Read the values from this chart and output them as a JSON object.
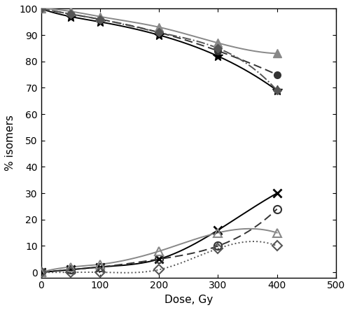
{
  "doses": [
    0,
    50,
    100,
    200,
    300,
    400
  ],
  "cis_AscH": [
    100,
    97,
    95,
    90,
    82,
    69
  ],
  "cis_ResOH": [
    100,
    98,
    96,
    91,
    84,
    75
  ],
  "cis_aTOH": [
    100,
    99,
    97,
    93,
    87,
    83
  ],
  "cis_mix": [
    100,
    98,
    96,
    91,
    85,
    69
  ],
  "trans_AscH": [
    0,
    1,
    2,
    5,
    16,
    30
  ],
  "trans_ResOH": [
    0,
    1,
    2,
    5,
    10,
    24
  ],
  "trans_aTOH": [
    0,
    2,
    3,
    8,
    15,
    15
  ],
  "trans_mix": [
    0,
    0,
    0,
    1,
    9,
    10
  ],
  "xlabel": "Dose, Gy",
  "ylabel": "% isomers",
  "xlim": [
    0,
    500
  ],
  "ylim": [
    -2,
    100
  ],
  "yticks": [
    0,
    10,
    20,
    30,
    40,
    50,
    60,
    70,
    80,
    90,
    100
  ],
  "xticks": [
    0,
    100,
    200,
    300,
    400,
    500
  ],
  "col_AscH": "#000000",
  "col_ResOH": "#333333",
  "col_aTOH": "#888888",
  "col_mix": "#555555"
}
